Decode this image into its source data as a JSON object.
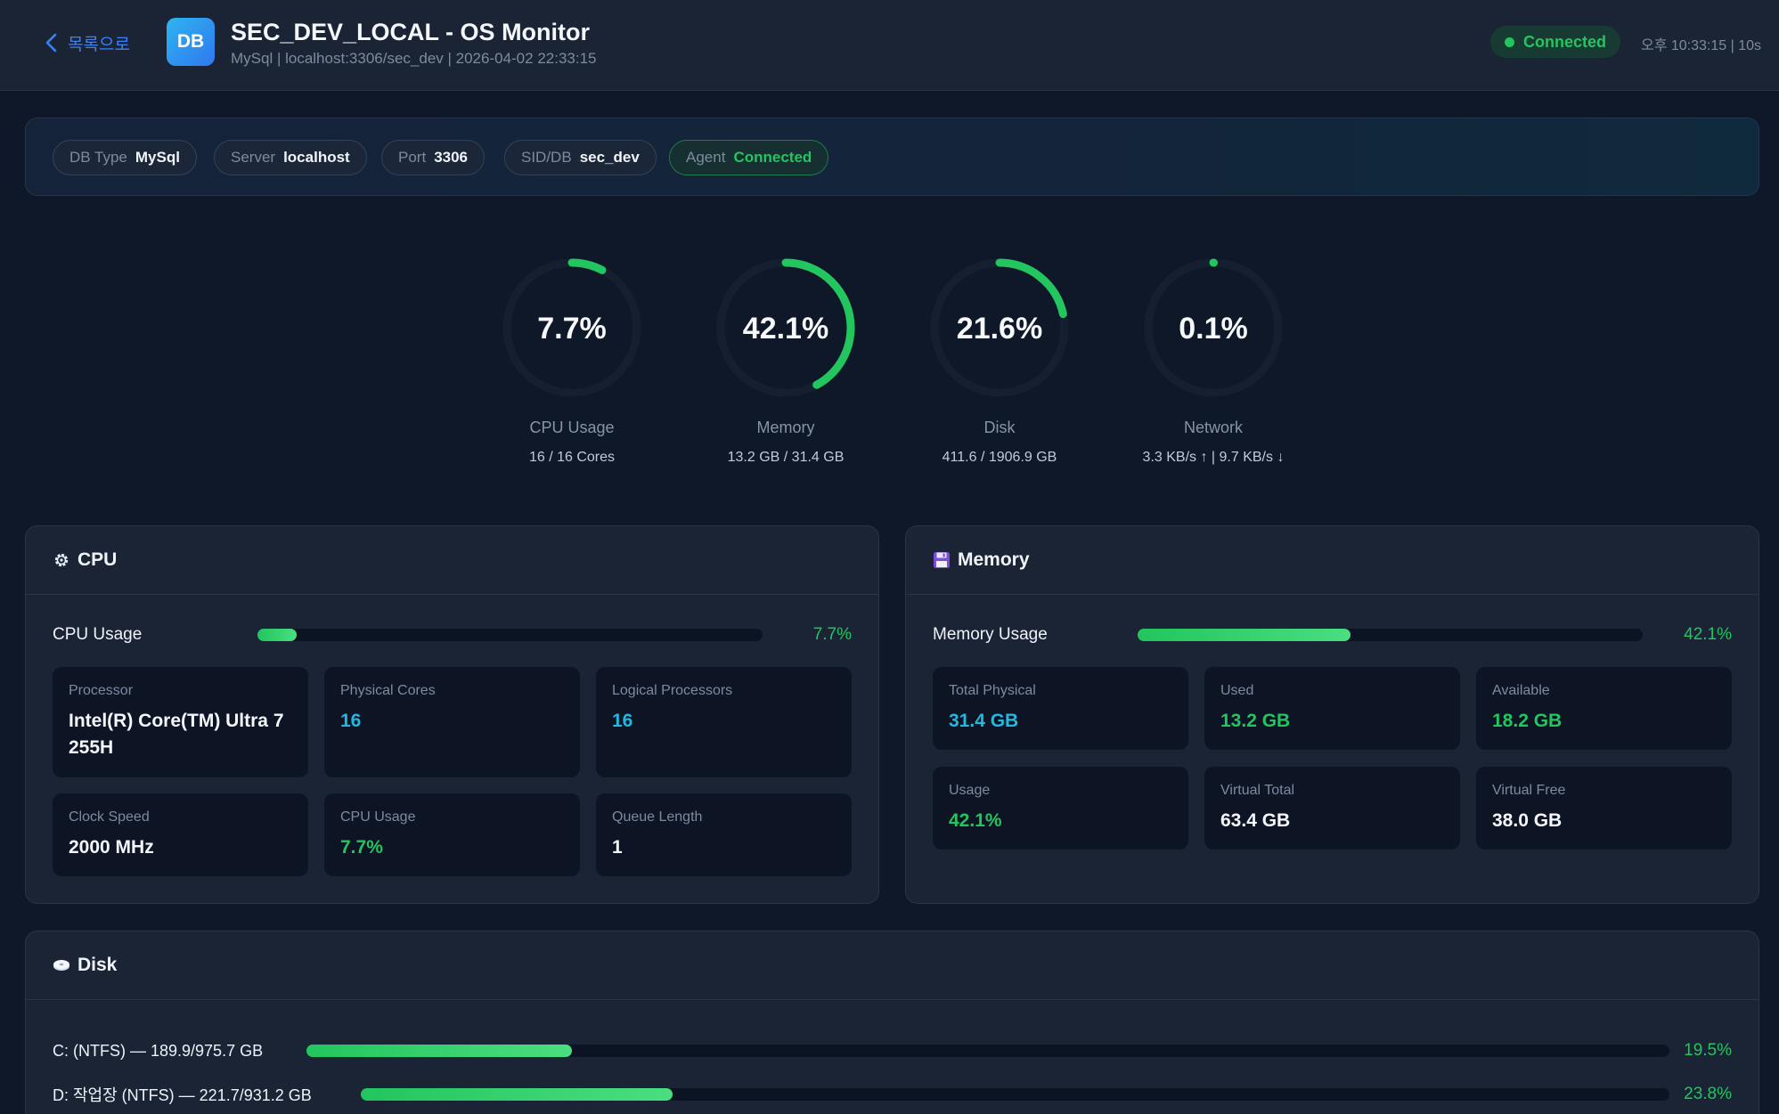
{
  "header": {
    "back_label": "목록으로",
    "logo_text": "DB",
    "title": "SEC_DEV_LOCAL - OS Monitor",
    "subtitle": "MySql | localhost:3306/sec_dev | 2026-04-02 22:33:15",
    "status": "Connected",
    "refresh_info": "오후 10:33:15 | 10s"
  },
  "info_chips": [
    {
      "key": "DB Type",
      "value": "MySql"
    },
    {
      "key": "Server",
      "value": "localhost"
    },
    {
      "key": "Port",
      "value": "3306"
    },
    {
      "key": "SID/DB",
      "value": "sec_dev"
    },
    {
      "key": "Agent",
      "value": "Connected"
    }
  ],
  "gauges": [
    {
      "value": "7.7%",
      "percent": 7.7,
      "label": "CPU Usage",
      "detail": "16 / 16 Cores"
    },
    {
      "value": "42.1%",
      "percent": 42.1,
      "label": "Memory",
      "detail": "13.2 GB / 31.4 GB"
    },
    {
      "value": "21.6%",
      "percent": 21.6,
      "label": "Disk",
      "detail": "411.6 / 1906.9 GB"
    },
    {
      "value": "0.1%",
      "percent": 0.1,
      "label": "Network",
      "detail": "3.3 KB/s ↑ | 9.7 KB/s ↓"
    }
  ],
  "cpu": {
    "title": "CPU",
    "icon": "gear-icon",
    "usage_label": "CPU Usage",
    "usage_pct": "7.7%",
    "usage_value": 7.7,
    "cards": [
      {
        "label": "Processor",
        "value": "Intel(R) Core(TM) Ultra 7 255H"
      },
      {
        "label": "Physical Cores",
        "value": "16"
      },
      {
        "label": "Logical Processors",
        "value": "16"
      },
      {
        "label": "Clock Speed",
        "value": "2000 MHz"
      },
      {
        "label": "CPU Usage",
        "value": "7.7%"
      },
      {
        "label": "Queue Length",
        "value": "1"
      }
    ]
  },
  "memory": {
    "title": "Memory",
    "icon": "floppy-disk-icon",
    "usage_label": "Memory Usage",
    "usage_pct": "42.1%",
    "usage_value": 42.1,
    "cards": [
      {
        "label": "Total Physical",
        "value": "31.4 GB"
      },
      {
        "label": "Used",
        "value": "13.2 GB"
      },
      {
        "label": "Available",
        "value": "18.2 GB"
      },
      {
        "label": "Usage",
        "value": "42.1%"
      },
      {
        "label": "Virtual Total",
        "value": "63.4 GB"
      },
      {
        "label": "Virtual Free",
        "value": "38.0 GB"
      }
    ]
  },
  "disk": {
    "title": "Disk",
    "icon": "disk-drive-icon",
    "drives": [
      {
        "label": "C: (NTFS) — 189.9/975.7 GB",
        "pct": "19.5%",
        "value": 19.5
      },
      {
        "label": "D: 작업장 (NTFS) — 221.7/931.2 GB",
        "pct": "23.8%",
        "value": 23.8
      }
    ]
  },
  "colors": {
    "accent_green": "#22c55e",
    "accent_blue": "#3b82f6",
    "value_cyan": "#22b8e0",
    "background": "#0f1829",
    "panel": "#1b2435"
  }
}
